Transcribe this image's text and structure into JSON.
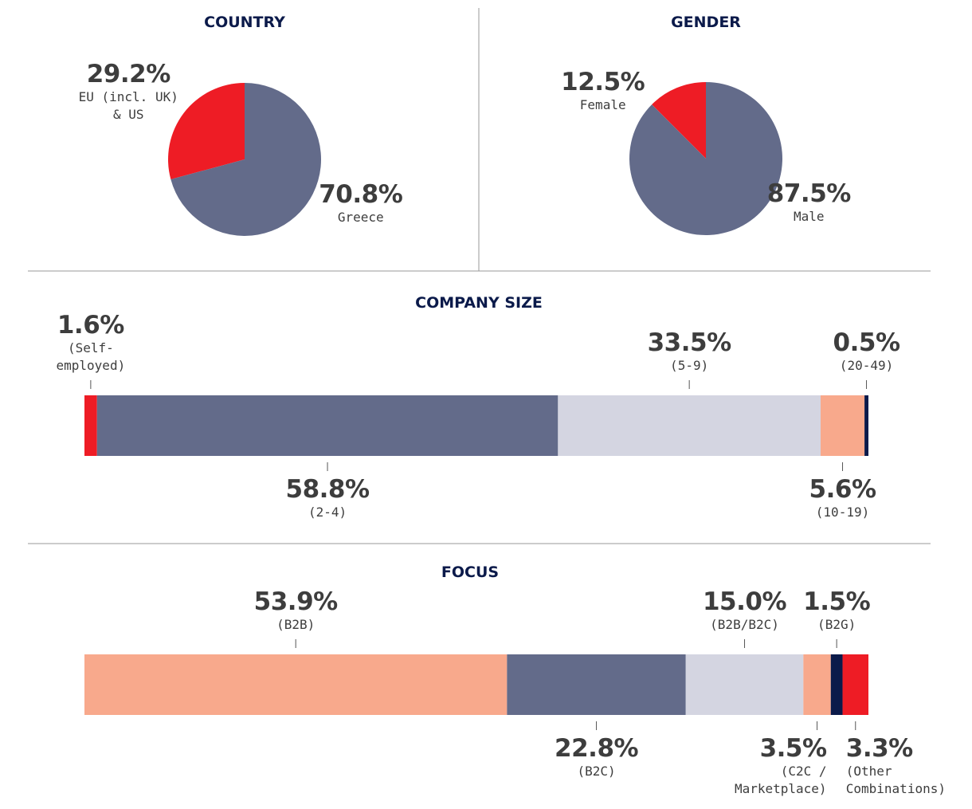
{
  "chart_data": [
    {
      "type": "pie",
      "title": "COUNTRY",
      "categories": [
        "EU (incl. UK) & US",
        "Greece"
      ],
      "values": [
        29.2,
        70.8
      ],
      "value_labels": [
        "29.2%",
        "70.8%"
      ],
      "colors": [
        "#ee1c25",
        "#636b8a"
      ]
    },
    {
      "type": "pie",
      "title": "GENDER",
      "categories": [
        "Female",
        "Male"
      ],
      "values": [
        12.5,
        87.5
      ],
      "value_labels": [
        "12.5%",
        "87.5%"
      ],
      "colors": [
        "#ee1c25",
        "#636b8a"
      ]
    },
    {
      "type": "stacked-bar",
      "title": "COMPANY SIZE",
      "series": [
        {
          "name": "(Self-employed)",
          "color": "#ee1c25",
          "values": [
            1.6
          ],
          "value_labels": [
            "1.6%"
          ]
        },
        {
          "name": "(2-4)",
          "color": "#636b8a",
          "values": [
            58.8
          ],
          "value_labels": [
            "58.8%"
          ]
        },
        {
          "name": "(5-9)",
          "color": "#d4d5e1",
          "values": [
            33.5
          ],
          "value_labels": [
            "33.5%"
          ]
        },
        {
          "name": "(10-19)",
          "color": "#f8a98c",
          "values": [
            5.6
          ],
          "value_labels": [
            "5.6%"
          ]
        },
        {
          "name": "(20-49)",
          "color": "#0b1a4a",
          "values": [
            0.5
          ],
          "value_labels": [
            "0.5%"
          ]
        }
      ]
    },
    {
      "type": "stacked-bar",
      "title": "FOCUS",
      "series": [
        {
          "name": "(B2B)",
          "color": "#f8a98c",
          "values": [
            53.9
          ],
          "value_labels": [
            "53.9%"
          ]
        },
        {
          "name": "(B2C)",
          "color": "#636b8a",
          "values": [
            22.8
          ],
          "value_labels": [
            "22.8%"
          ]
        },
        {
          "name": "(B2B/B2C)",
          "color": "#d4d5e1",
          "values": [
            15.0
          ],
          "value_labels": [
            "15.0%"
          ]
        },
        {
          "name": "(C2C / Marketplace)",
          "color": "#f8a98c",
          "values": [
            3.5
          ],
          "value_labels": [
            "3.5%"
          ]
        },
        {
          "name": "(B2G)",
          "color": "#0b1a4a",
          "values": [
            1.5
          ],
          "value_labels": [
            "1.5%"
          ]
        },
        {
          "name": "(Other Combinations)",
          "color": "#ee1c25",
          "values": [
            3.3
          ],
          "value_labels": [
            "3.3%"
          ]
        }
      ]
    }
  ]
}
